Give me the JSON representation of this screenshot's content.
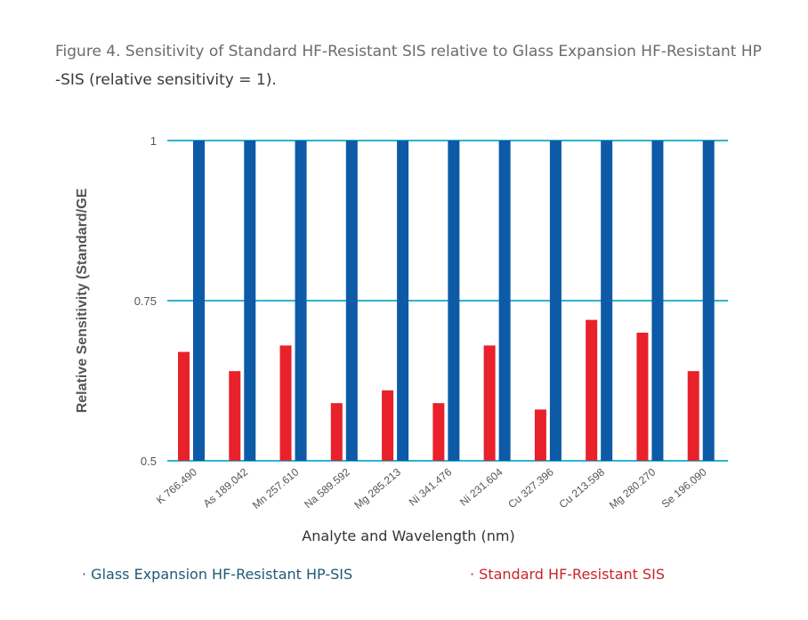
{
  "caption": {
    "line1": "Figure 4. Sensitivity of Standard HF-Resistant SIS relative to Glass Expansion HF-Resistant HP",
    "line2": "-SIS (relative sensitivity = 1)."
  },
  "legend": {
    "ge": "· Glass Expansion HF-Resistant HP-SIS",
    "standard": "· Standard HF-Resistant SIS"
  },
  "colors": {
    "standard": "#e8212b",
    "ge": "#0d5aa7",
    "gridline": "#2bb3d6",
    "axis_text": "#555555"
  },
  "chart_data": {
    "type": "bar",
    "xlabel": "Analyte and Wavelength (nm)",
    "ylabel": "Relative Sensitivity (Standard/GE",
    "ylim": [
      0.5,
      1
    ],
    "yticks": [
      "0.5",
      "0.75",
      "1"
    ],
    "grid": true,
    "categories": [
      "K 766.490",
      "As 189.042",
      "Mn 257.610",
      "Na 589.592",
      "Mg 285.213",
      "Ni 341.476",
      "Ni 231.604",
      "Cu 327.396",
      "Cu 213.598",
      "Mg 280.270",
      "Se 196.090"
    ],
    "series": [
      {
        "name": "Standard HF-Resistant SIS",
        "values": [
          0.67,
          0.64,
          0.68,
          0.59,
          0.61,
          0.59,
          0.68,
          0.58,
          0.72,
          0.7,
          0.64
        ]
      },
      {
        "name": "Glass Expansion HF-Resistant HP-SIS",
        "values": [
          1,
          1,
          1,
          1,
          1,
          1,
          1,
          1,
          1,
          1,
          1
        ]
      }
    ]
  }
}
